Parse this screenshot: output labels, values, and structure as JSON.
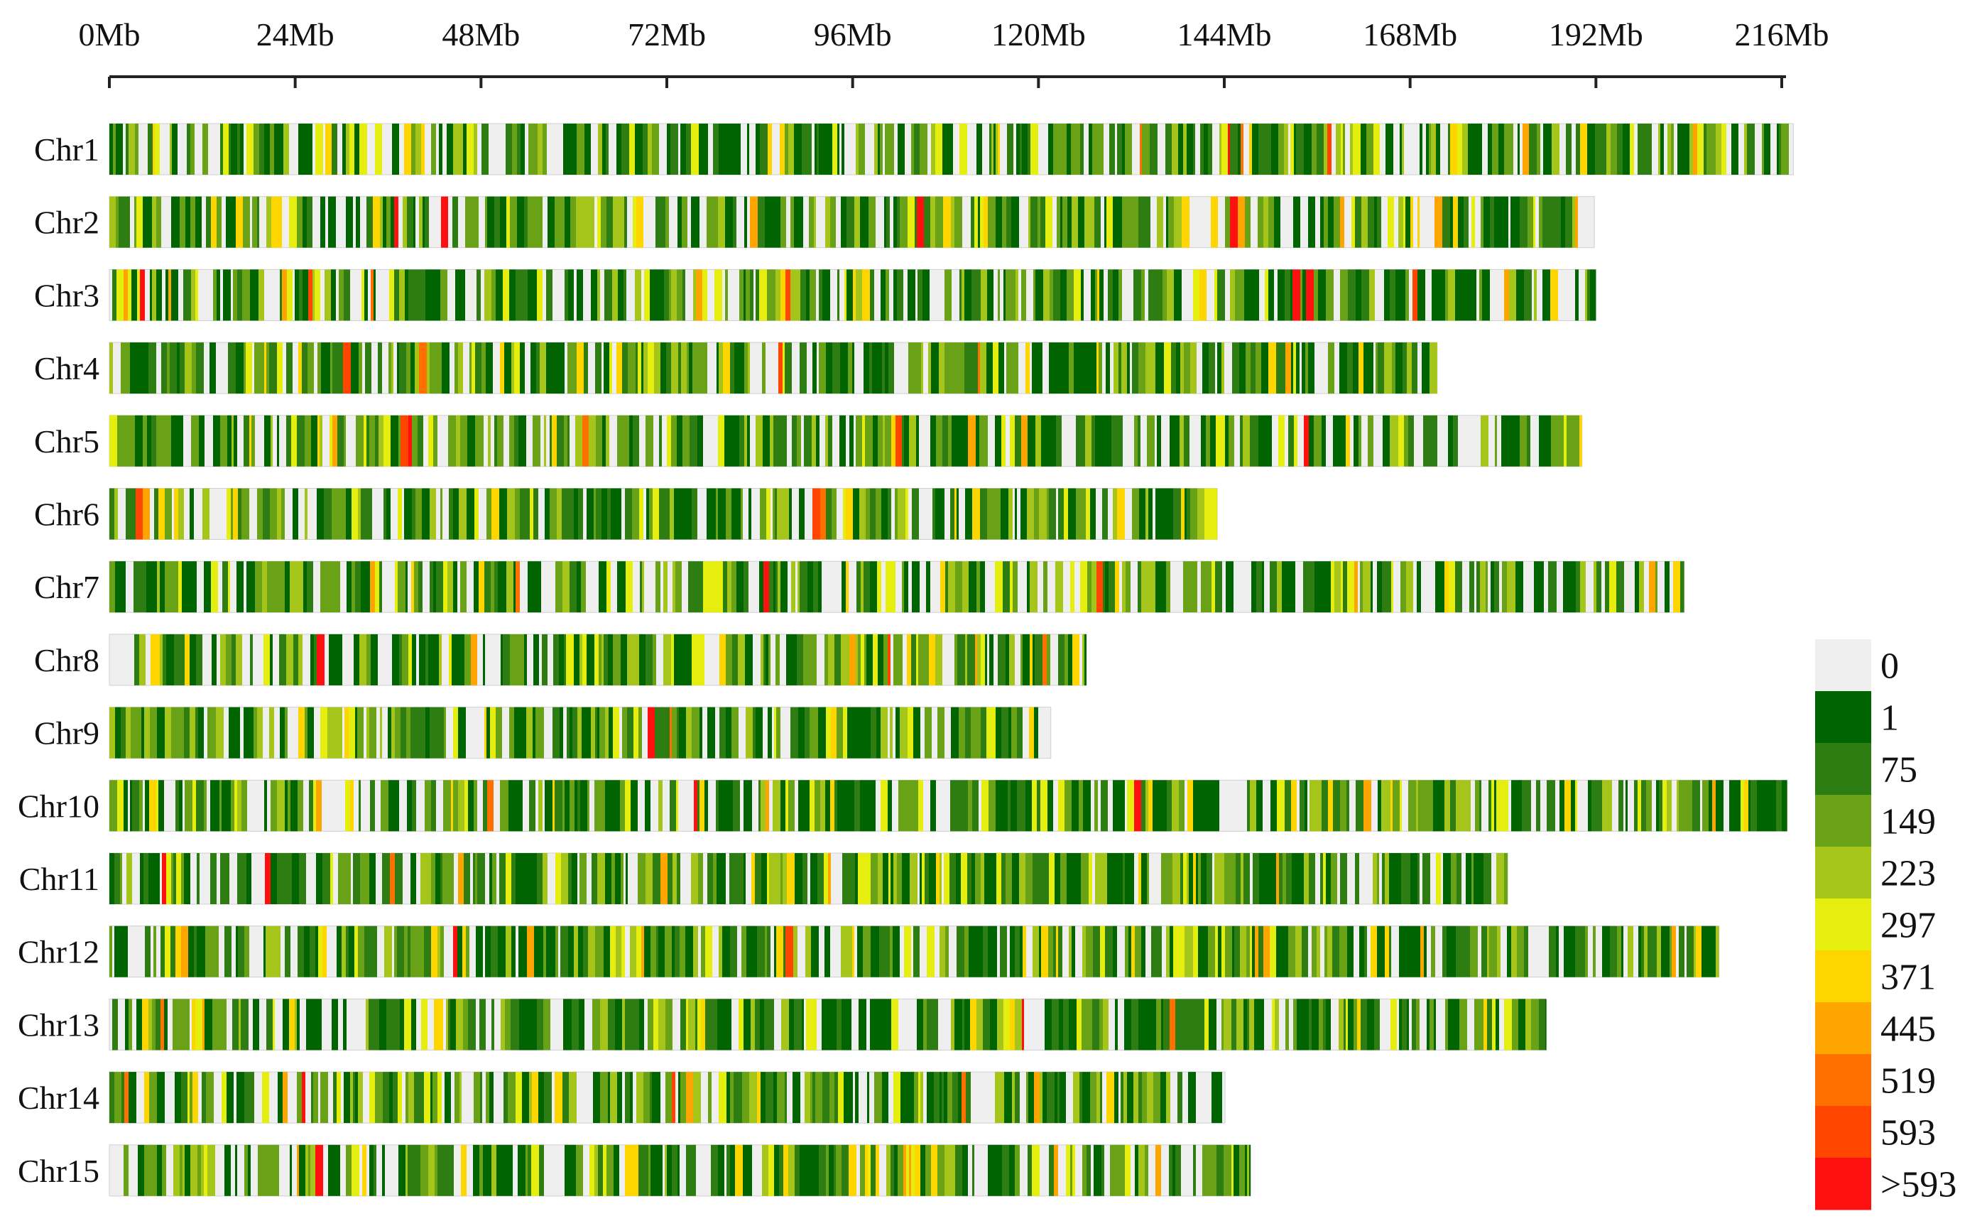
{
  "colors": {
    "empty": "#efefef",
    "bin_1": "#006400",
    "bin_75": "#2e7d12",
    "bin_149": "#6aa217",
    "bin_223": "#a6c51a",
    "bin_297": "#e6ee10",
    "bin_371": "#ffd500",
    "bin_445": "#ffa500",
    "bin_519": "#ff7000",
    "bin_593": "#ff4500",
    "bin_gt593": "#ff1010",
    "axis": "#222222"
  },
  "chart_data": {
    "type": "heatmap",
    "title": "",
    "x_axis": {
      "unit": "Mb",
      "range": [
        0,
        216
      ],
      "tick_values": [
        0,
        24,
        48,
        72,
        96,
        120,
        144,
        168,
        192,
        216
      ],
      "tick_labels": [
        "0Mb",
        "24Mb",
        "48Mb",
        "72Mb",
        "96Mb",
        "120Mb",
        "144Mb",
        "168Mb",
        "192Mb",
        "216Mb"
      ]
    },
    "chromosomes": [
      {
        "name": "Chr1",
        "length_mb": 217.5
      },
      {
        "name": "Chr2",
        "length_mb": 191.8
      },
      {
        "name": "Chr3",
        "length_mb": 192.0
      },
      {
        "name": "Chr4",
        "length_mb": 171.5
      },
      {
        "name": "Chr5",
        "length_mb": 190.2
      },
      {
        "name": "Chr6",
        "length_mb": 143.1
      },
      {
        "name": "Chr7",
        "length_mb": 203.4
      },
      {
        "name": "Chr8",
        "length_mb": 126.2
      },
      {
        "name": "Chr9",
        "length_mb": 121.6
      },
      {
        "name": "Chr10",
        "length_mb": 216.7
      },
      {
        "name": "Chr11",
        "length_mb": 180.6
      },
      {
        "name": "Chr12",
        "length_mb": 207.9
      },
      {
        "name": "Chr13",
        "length_mb": 185.6
      },
      {
        "name": "Chr14",
        "length_mb": 144.1
      },
      {
        "name": "Chr15",
        "length_mb": 147.4
      }
    ],
    "legend": {
      "labels": [
        "0",
        "1",
        "75",
        "149",
        "223",
        "297",
        "371",
        "445",
        "519",
        "593",
        ">593"
      ],
      "colors": [
        "#efefef",
        "#006400",
        "#2e7d12",
        "#6aa217",
        "#a6c51a",
        "#e6ee10",
        "#ffd500",
        "#ffa500",
        "#ff7000",
        "#ff4500",
        "#ff1010"
      ]
    }
  }
}
